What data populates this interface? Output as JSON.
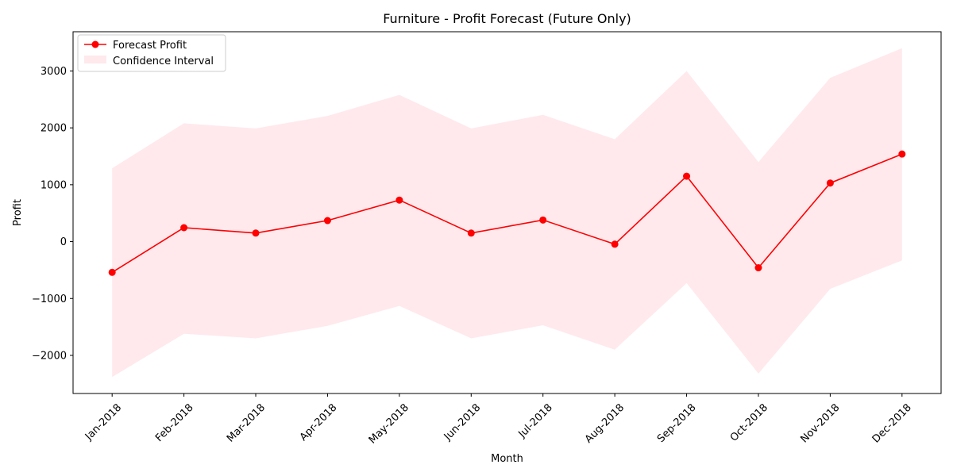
{
  "chart_data": {
    "type": "line",
    "title": "Furniture - Profit Forecast (Future Only)",
    "xlabel": "Month",
    "ylabel": "Profit",
    "categories": [
      "Jan-2018",
      "Feb-2018",
      "Mar-2018",
      "Apr-2018",
      "May-2018",
      "Jun-2018",
      "Jul-2018",
      "Aug-2018",
      "Sep-2018",
      "Oct-2018",
      "Nov-2018",
      "Dec-2018"
    ],
    "x_dates": [
      "2018-01-01",
      "2018-02-01",
      "2018-03-01",
      "2018-04-01",
      "2018-05-01",
      "2018-06-01",
      "2018-07-01",
      "2018-08-01",
      "2018-09-01",
      "2018-10-01",
      "2018-11-01",
      "2018-12-01"
    ],
    "series": [
      {
        "name": "Forecast Profit",
        "color": "#ff0000",
        "values": [
          -540,
          245,
          150,
          370,
          730,
          150,
          380,
          -45,
          1150,
          -460,
          1030,
          1540
        ]
      }
    ],
    "confidence_interval": {
      "name": "Confidence Interval",
      "color": "#ffc0cb",
      "lower": [
        -2380,
        -1620,
        -1700,
        -1480,
        -1130,
        -1700,
        -1470,
        -1900,
        -730,
        -2320,
        -830,
        -330
      ],
      "upper": [
        1290,
        2080,
        1990,
        2210,
        2580,
        1990,
        2230,
        1800,
        3000,
        1400,
        2880,
        3400
      ]
    },
    "ylim": [
      -2670,
      3690
    ],
    "yticks": [
      -2000,
      -1000,
      0,
      1000,
      2000,
      3000
    ],
    "ytick_labels": [
      "−2000",
      "−1000",
      "0",
      "1000",
      "2000",
      "3000"
    ],
    "xtick_rotation": 45,
    "grid": false,
    "legend_position": "upper left"
  }
}
